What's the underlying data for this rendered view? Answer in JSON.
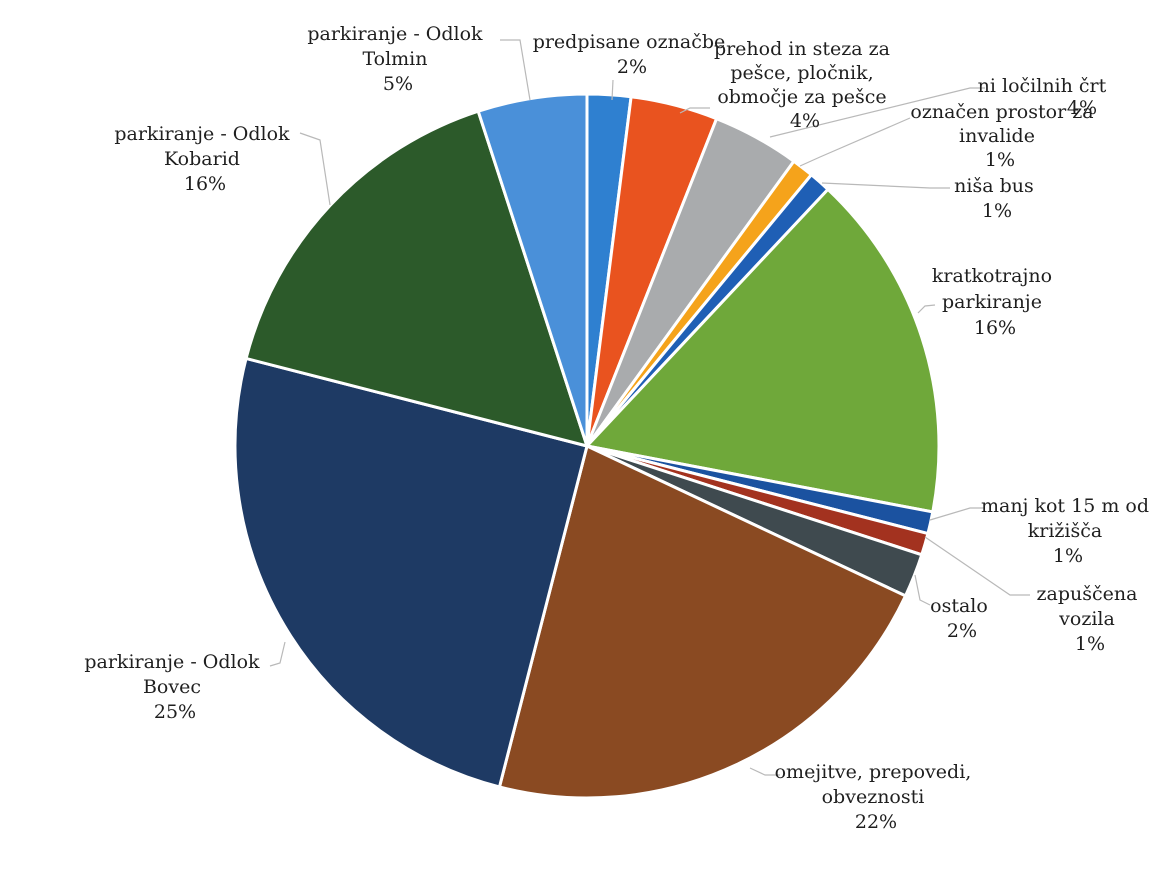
{
  "chart_data": {
    "type": "pie",
    "title": "",
    "slices": [
      {
        "label": "predpisane označbe",
        "value": 2,
        "display": "2%",
        "color": "#2f80d0"
      },
      {
        "label": "prehod in steza za pešce, pločnik, območje za pešce",
        "value": 4,
        "display": "4%",
        "color": "#e9531f"
      },
      {
        "label": "ni ločilnih črt",
        "value": 4,
        "display": "4%",
        "color": "#a9abad"
      },
      {
        "label": "označen prostor za invalide",
        "value": 1,
        "display": "1%",
        "color": "#f5a31b"
      },
      {
        "label": "niša bus",
        "value": 1,
        "display": "1%",
        "color": "#1f5fb5"
      },
      {
        "label": "kratkotrajno parkiranje",
        "value": 16,
        "display": "16%",
        "color": "#6fa83a"
      },
      {
        "label": "manj kot 15 m od križišča",
        "value": 1,
        "display": "1%",
        "color": "#1b52a0"
      },
      {
        "label": "zapuščena vozila",
        "value": 1,
        "display": "1%",
        "color": "#a3321f"
      },
      {
        "label": "ostalo",
        "value": 2,
        "display": "2%",
        "color": "#3f4a4f"
      },
      {
        "label": "omejitve, prepovedi, obveznosti",
        "value": 22,
        "display": "22%",
        "color": "#8a4a22"
      },
      {
        "label": "parkiranje - Odlok Bovec",
        "value": 25,
        "display": "25%",
        "color": "#1e3a64"
      },
      {
        "label": "parkiranje - Odlok Kobarid",
        "value": 16,
        "display": "16%",
        "color": "#2c5a2a"
      },
      {
        "label": "parkiranje - Odlok Tolmin",
        "value": 5,
        "display": "5%",
        "color": "#4a90d9"
      }
    ],
    "labels": {
      "predpisane": {
        "lines": [
          "predpisane označbe",
          "2%"
        ]
      },
      "prehod": {
        "lines": [
          "prehod in steza za",
          "pešce, pločnik,",
          "območje za pešce",
          "4%"
        ]
      },
      "locilnih": {
        "lines": [
          "ni ločilnih črt",
          "4%"
        ]
      },
      "invalide": {
        "lines": [
          "označen prostor za",
          "invalide",
          "1%"
        ]
      },
      "nisa": {
        "lines": [
          "niša bus",
          "1%"
        ]
      },
      "kratkotrajno": {
        "lines": [
          "kratkotrajno",
          "parkiranje",
          "16%"
        ]
      },
      "krizisca": {
        "lines": [
          "manj kot 15 m od",
          "križišča",
          "1%"
        ]
      },
      "zapuscena": {
        "lines": [
          "zapuščena",
          "vozila",
          "1%"
        ]
      },
      "ostalo": {
        "lines": [
          "ostalo",
          "2%"
        ]
      },
      "omejitve": {
        "lines": [
          "omejitve, prepovedi,",
          "obveznosti",
          "22%"
        ]
      },
      "bovec": {
        "lines": [
          "parkiranje - Odlok",
          "Bovec",
          "25%"
        ]
      },
      "kobarid": {
        "lines": [
          "parkiranje - Odlok",
          "Kobarid",
          "16%"
        ]
      },
      "tolmin": {
        "lines": [
          "parkiranje - Odlok",
          "Tolmin",
          "5%"
        ]
      }
    }
  }
}
